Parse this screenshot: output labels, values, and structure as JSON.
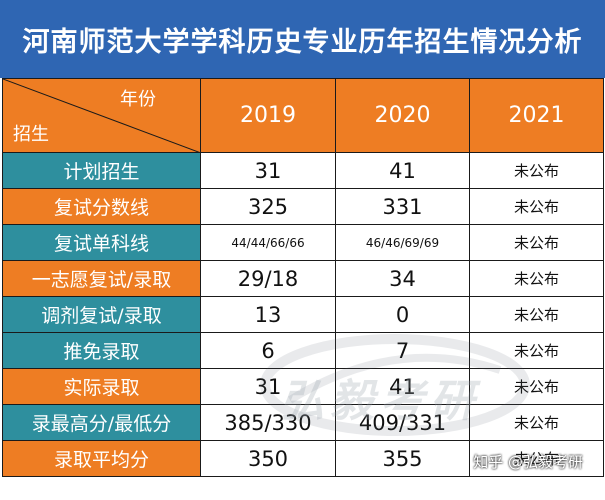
{
  "title": "河南师范大学学科历史专业历年招生情况分析",
  "header": {
    "corner_year": "年份",
    "corner_admission": "招生",
    "years": [
      "2019",
      "2020",
      "2021"
    ]
  },
  "rows": [
    {
      "label": "计划招生",
      "values": [
        "31",
        "41",
        "未公布"
      ]
    },
    {
      "label": "复试分数线",
      "values": [
        "325",
        "331",
        "未公布"
      ]
    },
    {
      "label": "复试单科线",
      "values": [
        "44/44/66/66",
        "46/46/69/69",
        "未公布"
      ]
    },
    {
      "label": "一志愿复试/录取",
      "values": [
        "29/18",
        "34",
        "未公布"
      ]
    },
    {
      "label": "调剂复试/录取",
      "values": [
        "13",
        "0",
        "未公布"
      ]
    },
    {
      "label": "推免录取",
      "values": [
        "6",
        "7",
        "未公布"
      ]
    },
    {
      "label": "实际录取",
      "values": [
        "31",
        "41",
        "未公布"
      ]
    },
    {
      "label": "录最高分/最低分",
      "values": [
        "385/330",
        "409/331",
        "未公布"
      ]
    },
    {
      "label": "录取平均分",
      "values": [
        "350",
        "355",
        "未公布"
      ]
    }
  ],
  "watermark": {
    "text": "弘毅考研",
    "credit": "知乎 @弘毅考研"
  },
  "colors": {
    "title_bg": "#2f66b3",
    "orange": "#ee7d23",
    "teal": "#2e8f9e"
  }
}
